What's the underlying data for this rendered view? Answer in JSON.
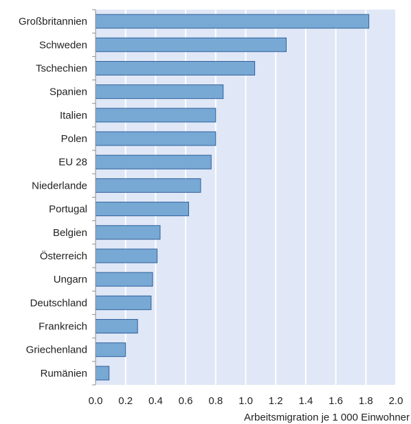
{
  "chart_data": {
    "type": "bar",
    "orientation": "horizontal",
    "categories": [
      "Großbritannien",
      "Schweden",
      "Tschechien",
      "Spanien",
      "Italien",
      "Polen",
      "EU 28",
      "Niederlande",
      "Portugal",
      "Belgien",
      "Österreich",
      "Ungarn",
      "Deutschland",
      "Frankreich",
      "Griechenland",
      "Rumänien"
    ],
    "values": [
      1.82,
      1.27,
      1.06,
      0.85,
      0.8,
      0.8,
      0.77,
      0.7,
      0.62,
      0.43,
      0.41,
      0.38,
      0.37,
      0.28,
      0.2,
      0.09
    ],
    "xlabel": "Arbeitsmigration je 1 000 Einwohner",
    "xticks": [
      "0.0",
      "0.2",
      "0.4",
      "0.6",
      "0.8",
      "1.0",
      "1.2",
      "1.4",
      "1.6",
      "1.8",
      "2.0"
    ],
    "xlim": [
      0,
      2.0
    ],
    "grid": "vertical",
    "colors": {
      "bar_fill": "#78a9d5",
      "bar_stroke": "#2f5f9a",
      "plot_bg": "#e0e7f6",
      "grid": "#ffffff",
      "axis": "#8c8c8c"
    }
  }
}
